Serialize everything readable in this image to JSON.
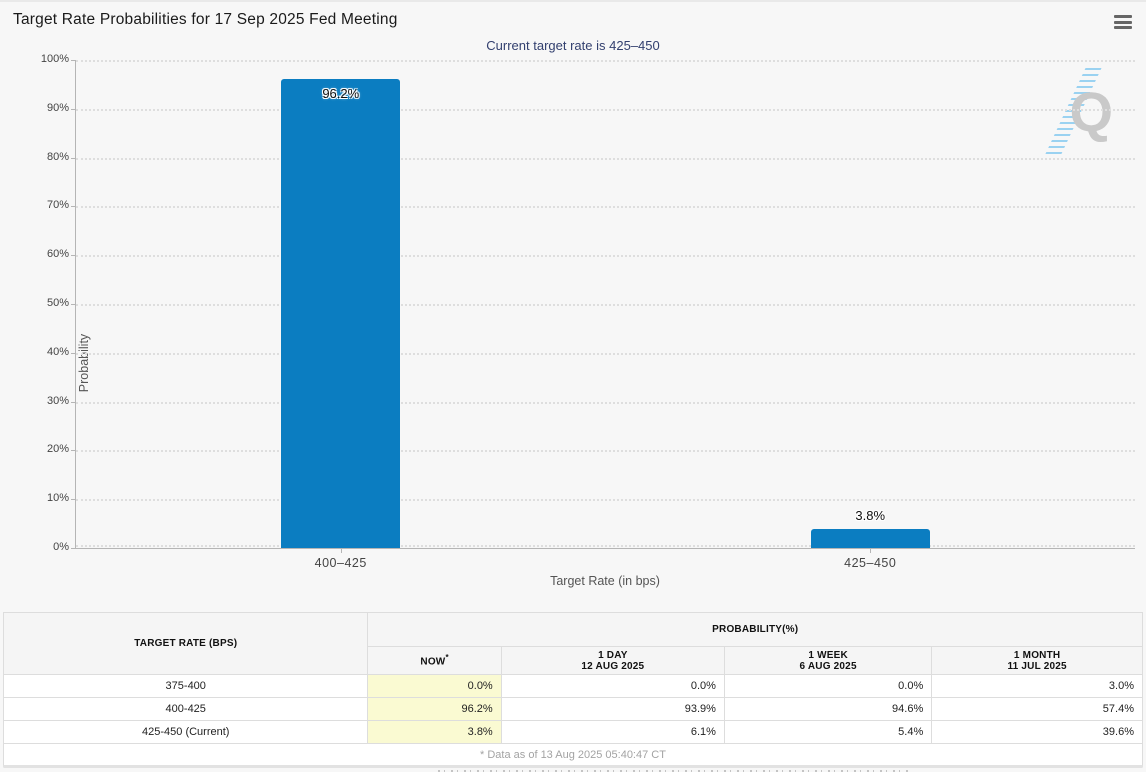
{
  "header": {
    "title": "Target Rate Probabilities for 17 Sep 2025 Fed Meeting",
    "subtitle": "Current target rate is 425–450"
  },
  "colors": {
    "background": "#f7f7f7",
    "bar": "#0b7dc1",
    "subtitle_text": "#33406f",
    "now_column_bg": "#fafad2",
    "gridline": "#dedede",
    "axis": "#b5b5b5"
  },
  "chart_data": {
    "type": "bar",
    "title": "Target Rate Probabilities for 17 Sep 2025 Fed Meeting",
    "subtitle": "Current target rate is 425–450",
    "categories": [
      "400–425",
      "425–450"
    ],
    "values": [
      96.2,
      3.8
    ],
    "value_labels": [
      "96.2%",
      "3.8%"
    ],
    "xlabel": "Target Rate (in bps)",
    "ylabel": "Probability",
    "ylim": [
      0,
      100
    ],
    "ytick_step": 10,
    "ytick_suffix": "%",
    "grid": "horizontal-dotted",
    "legend": "none",
    "bar_color": "#0b7dc1",
    "bar_width_frac": 0.112
  },
  "watermark": {
    "letter": "Q"
  },
  "table": {
    "col1_header": "TARGET RATE (BPS)",
    "group_header": "PROBABILITY(%)",
    "subheaders": [
      {
        "line1": "NOW",
        "sup": "*",
        "line2": ""
      },
      {
        "line1": "1 DAY",
        "line2": "12 AUG 2025"
      },
      {
        "line1": "1 WEEK",
        "line2": "6 AUG 2025"
      },
      {
        "line1": "1 MONTH",
        "line2": "11 JUL 2025"
      }
    ],
    "rows": [
      {
        "rate": "375-400",
        "now": "0.0%",
        "day": "0.0%",
        "week": "0.0%",
        "month": "3.0%"
      },
      {
        "rate": "400-425",
        "now": "96.2%",
        "day": "93.9%",
        "week": "94.6%",
        "month": "57.4%"
      },
      {
        "rate": "425-450 (Current)",
        "now": "3.8%",
        "day": "6.1%",
        "week": "5.4%",
        "month": "39.6%"
      }
    ],
    "footnote": "* Data as of 13 Aug 2025 05:40:47 CT"
  }
}
